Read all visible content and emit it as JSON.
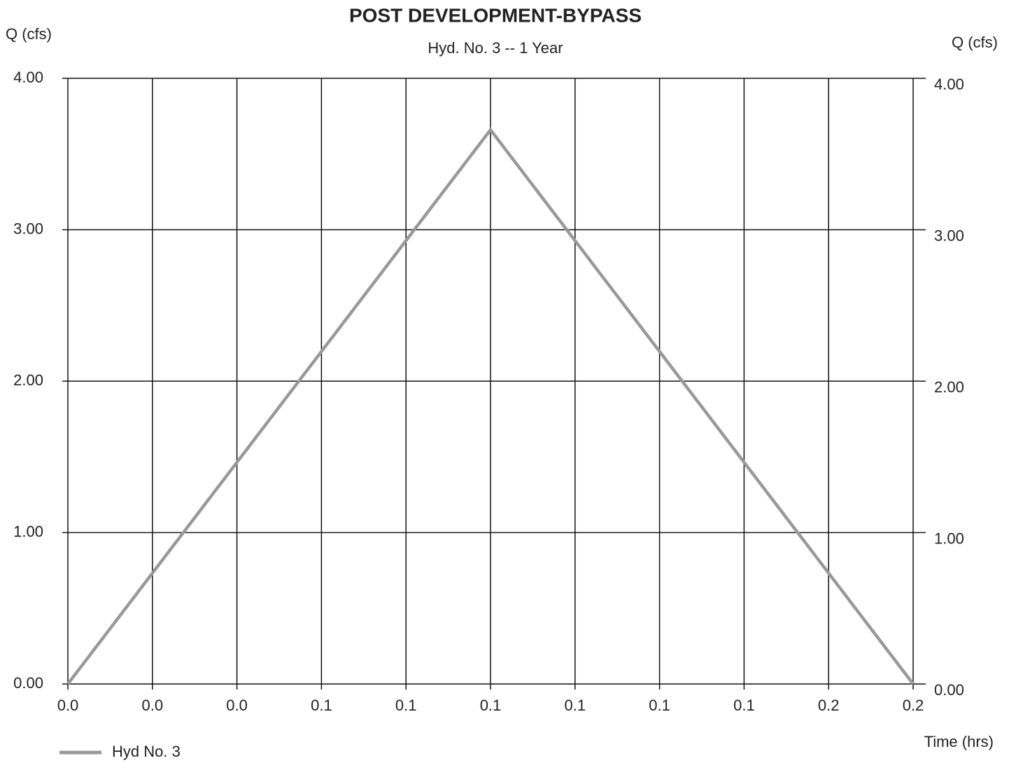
{
  "chart_data": {
    "type": "line",
    "title": "POST DEVELOPMENT-BYPASS",
    "subtitle": "Hyd. No. 3 -- 1 Year",
    "ylabel": "Q (cfs)",
    "y2label": "Q (cfs)",
    "xlabel": "Time (hrs)",
    "x": [
      0,
      0.083333,
      0.166667
    ],
    "series": [
      {
        "name": "Hyd No. 3",
        "color": "#999999",
        "values": [
          0,
          3.66,
          0
        ]
      }
    ],
    "xlim": [
      0,
      0.166667
    ],
    "xticks": [
      {
        "value": 0,
        "label": "0.0"
      },
      {
        "value": 0.016667,
        "label": "0.0"
      },
      {
        "value": 0.033333,
        "label": "0.0"
      },
      {
        "value": 0.05,
        "label": "0.1"
      },
      {
        "value": 0.066667,
        "label": "0.1"
      },
      {
        "value": 0.083333,
        "label": "0.1"
      },
      {
        "value": 0.1,
        "label": "0.1"
      },
      {
        "value": 0.116667,
        "label": "0.1"
      },
      {
        "value": 0.133333,
        "label": "0.1"
      },
      {
        "value": 0.15,
        "label": "0.2"
      },
      {
        "value": 0.166667,
        "label": "0.2"
      }
    ],
    "ylim": [
      0,
      4
    ],
    "yticks": [
      {
        "value": 0,
        "label": "0.00"
      },
      {
        "value": 1,
        "label": "1.00"
      },
      {
        "value": 2,
        "label": "2.00"
      },
      {
        "value": 3,
        "label": "3.00"
      },
      {
        "value": 4,
        "label": "4.00"
      }
    ],
    "y2lim": [
      0,
      4
    ],
    "y2ticks": [
      {
        "value": 0,
        "label": "0.00"
      },
      {
        "value": 1,
        "label": "1.00"
      },
      {
        "value": 2,
        "label": "2.00"
      },
      {
        "value": 3,
        "label": "3.00"
      },
      {
        "value": 4,
        "label": "4.00"
      }
    ],
    "grid": true
  }
}
